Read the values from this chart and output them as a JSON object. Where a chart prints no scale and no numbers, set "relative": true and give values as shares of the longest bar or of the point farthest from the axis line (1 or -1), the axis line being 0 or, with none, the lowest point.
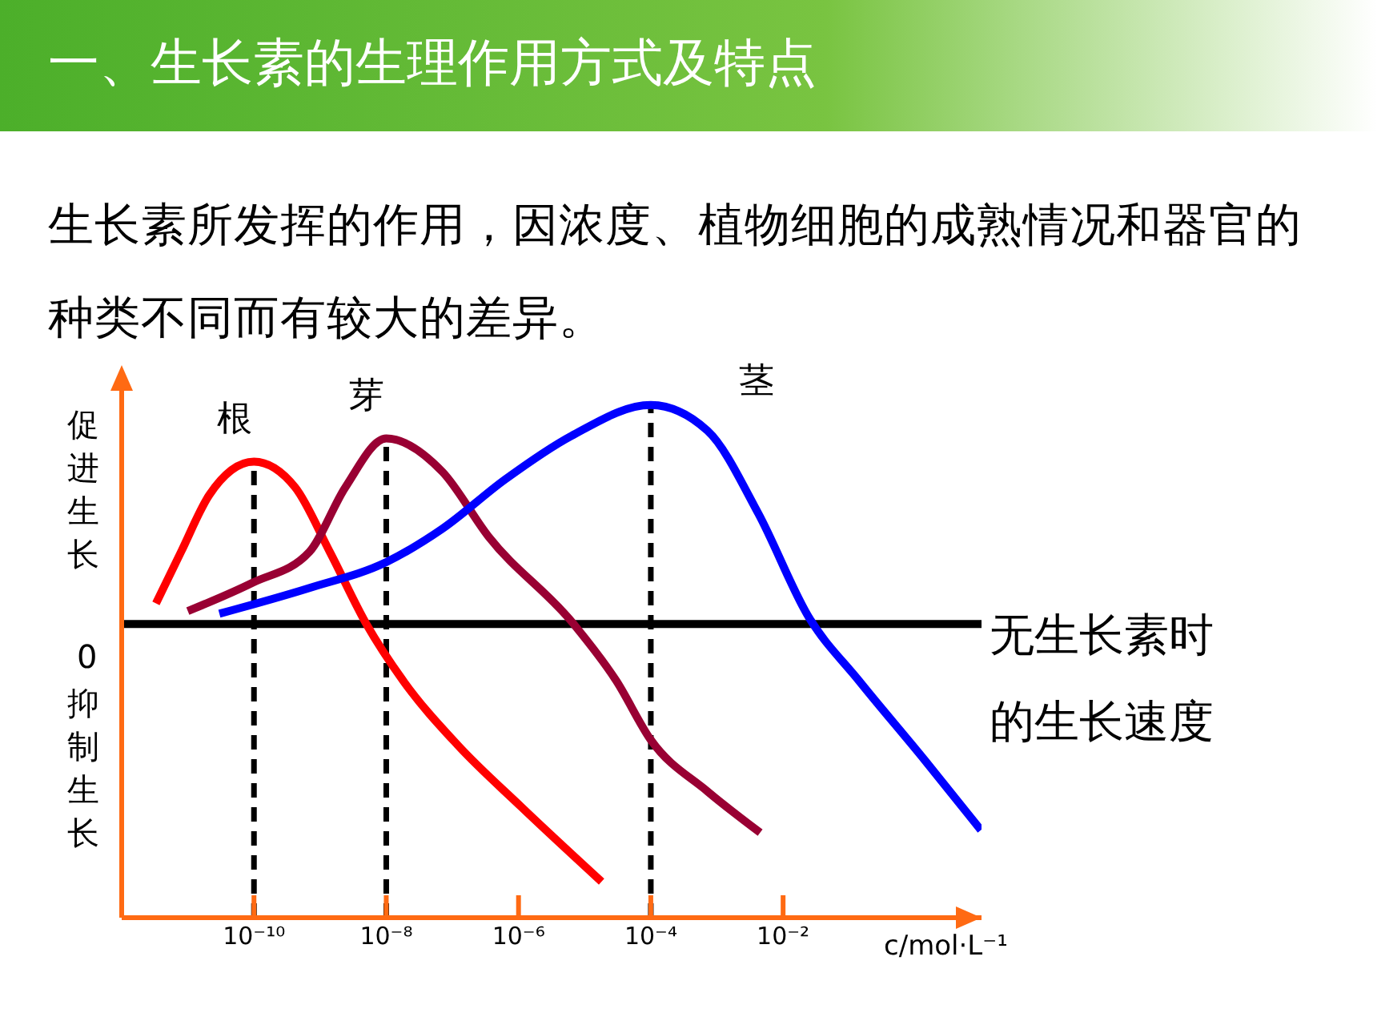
{
  "chart_data": {
    "type": "line",
    "title": "一、生长素的生理作用方式及特点",
    "subtitle": "生长素所发挥的作用，因浓度、植物细胞的成熟情况和器官的种类不同而有较大的差异。",
    "xlabel": "c/mol·L⁻¹",
    "ylabel": "促进生长",
    "annotations": [
      "0",
      "抑制生长"
    ],
    "relative": true,
    "log": "x",
    "xlim": [
      1e-12,
      10
    ],
    "xticks": [
      {
        "value": 1e-10,
        "label": "10⁻¹⁰"
      },
      {
        "value": 1e-08,
        "label": "10⁻⁸"
      },
      {
        "value": 1e-06,
        "label": "10⁻⁶"
      },
      {
        "value": 0.0001,
        "label": "10⁻⁴"
      },
      {
        "value": 0.01,
        "label": "10⁻²"
      }
    ],
    "grid": false,
    "legend": false,
    "marker": "none",
    "line_style": "solid",
    "ref_lines": [
      {
        "axis": "y",
        "value": 0,
        "label": "无生长素时的生长速度",
        "color": "#000000",
        "line_style": "solid"
      },
      {
        "axis": "x",
        "value": 1e-10,
        "color": "#000000",
        "line_style": "dashed"
      },
      {
        "axis": "x",
        "value": 1e-08,
        "color": "#000000",
        "line_style": "dashed"
      },
      {
        "axis": "x",
        "value": 0.0001,
        "color": "#000000",
        "line_style": "dashed"
      }
    ],
    "series": [
      {
        "name": "根",
        "color": "#ff0000",
        "x": [
          3.3e-12,
          7.9e-12,
          2.1e-11,
          1e-10,
          4.2e-10,
          1.4e-09,
          5e-09,
          1.8e-08,
          1.2e-07,
          1.1e-06,
          1.8e-05
        ],
        "values": [
          0.08,
          0.28,
          0.5,
          0.63,
          0.53,
          0.28,
          0,
          -0.22,
          -0.47,
          -0.71,
          -1
        ]
      },
      {
        "name": "芽",
        "color": "#990033",
        "x": [
          1e-11,
          9.5e-11,
          6.9e-10,
          2.4e-09,
          1e-08,
          7.1e-08,
          3.5e-07,
          6.8e-06,
          3e-05,
          0.0001,
          0.00072,
          0.0045
        ],
        "values": [
          0.05,
          0.16,
          0.28,
          0.53,
          0.72,
          0.59,
          0.34,
          0,
          -0.22,
          -0.45,
          -0.65,
          -0.81
        ]
      },
      {
        "name": "茎",
        "color": "#0000ff",
        "x": [
          3e-11,
          6.9e-10,
          1e-08,
          7.1e-08,
          6.2e-07,
          6.3e-06,
          0.0001,
          0.00072,
          0.0042,
          0.024,
          0.14,
          1.4,
          9.8
        ],
        "values": [
          0.04,
          0.14,
          0.24,
          0.37,
          0.56,
          0.73,
          0.85,
          0.75,
          0.43,
          0.03,
          -0.22,
          -0.53,
          -0.8
        ]
      }
    ]
  }
}
